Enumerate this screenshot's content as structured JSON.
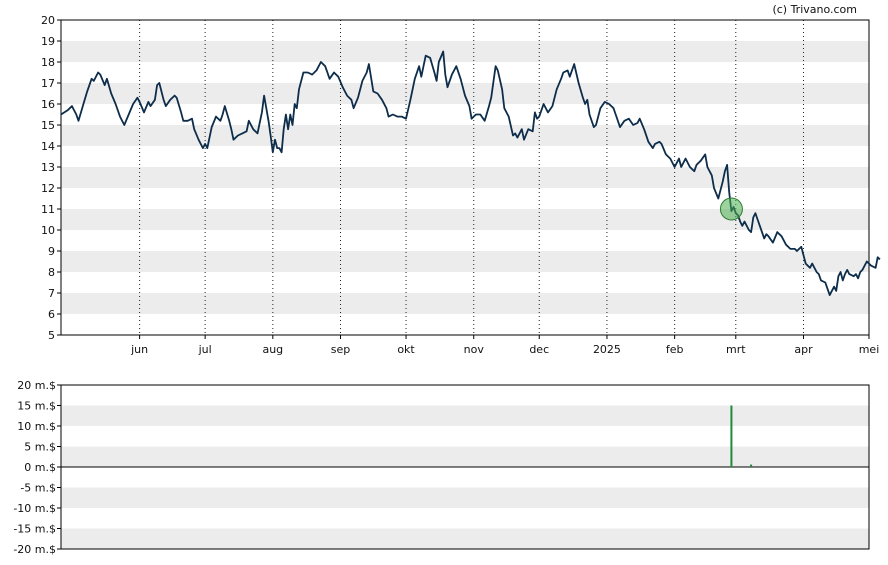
{
  "copyright": "(c) Trivano.com",
  "colors": {
    "band": "#ececec",
    "price_line": "#0d2d4a",
    "marker_fill": "#4caf50",
    "marker_stroke": "#2e7d32",
    "volume_bar": "#1f8a3a",
    "axis": "#000000"
  },
  "chart_data": [
    {
      "type": "line",
      "panel": "price",
      "ylim": [
        5,
        20
      ],
      "yticks": [
        "5",
        "6",
        "7",
        "8",
        "9",
        "10",
        "11",
        "12",
        "13",
        "14",
        "15",
        "16",
        "17",
        "18",
        "19",
        "20"
      ],
      "x_tick_labels": [
        {
          "label": "jun",
          "day": 25
        },
        {
          "label": "jul",
          "day": 55
        },
        {
          "label": "aug",
          "day": 86
        },
        {
          "label": "sep",
          "day": 117
        },
        {
          "label": "okt",
          "day": 147
        },
        {
          "label": "nov",
          "day": 178
        },
        {
          "label": "dec",
          "day": 208
        },
        {
          "label": "2025",
          "day": 239
        },
        {
          "label": "feb",
          "day": 270
        },
        {
          "label": "mrt",
          "day": 298
        },
        {
          "label": "apr",
          "day": 329
        },
        {
          "label": "mei",
          "day": 359
        }
      ],
      "x_day_range": [
        -11,
        359
      ],
      "series": [
        {
          "points": [
            [
              -11,
              15.5
            ],
            [
              -8,
              15.7
            ],
            [
              -6,
              15.9
            ],
            [
              -4,
              15.5
            ],
            [
              -3,
              15.2
            ],
            [
              -1,
              15.9
            ],
            [
              1,
              16.6
            ],
            [
              3,
              17.2
            ],
            [
              4,
              17.1
            ],
            [
              6,
              17.5
            ],
            [
              7,
              17.4
            ],
            [
              9,
              16.9
            ],
            [
              10,
              17.2
            ],
            [
              12,
              16.5
            ],
            [
              14,
              16.0
            ],
            [
              16,
              15.4
            ],
            [
              18,
              15.0
            ],
            [
              20,
              15.5
            ],
            [
              22,
              16.0
            ],
            [
              24,
              16.3
            ],
            [
              25,
              16.1
            ],
            [
              27,
              15.6
            ],
            [
              29,
              16.1
            ],
            [
              30,
              15.9
            ],
            [
              32,
              16.2
            ],
            [
              33,
              16.9
            ],
            [
              34,
              17.0
            ],
            [
              36,
              16.2
            ],
            [
              37,
              15.9
            ],
            [
              39,
              16.2
            ],
            [
              41,
              16.4
            ],
            [
              42,
              16.3
            ],
            [
              44,
              15.6
            ],
            [
              45,
              15.2
            ],
            [
              47,
              15.2
            ],
            [
              49,
              15.3
            ],
            [
              50,
              14.8
            ],
            [
              52,
              14.3
            ],
            [
              54,
              13.9
            ],
            [
              55,
              14.1
            ],
            [
              56,
              13.9
            ],
            [
              58,
              14.9
            ],
            [
              60,
              15.4
            ],
            [
              62,
              15.2
            ],
            [
              63,
              15.5
            ],
            [
              64,
              15.9
            ],
            [
              66,
              15.2
            ],
            [
              67,
              14.8
            ],
            [
              68,
              14.3
            ],
            [
              70,
              14.5
            ],
            [
              72,
              14.6
            ],
            [
              74,
              14.7
            ],
            [
              75,
              15.2
            ],
            [
              77,
              14.8
            ],
            [
              79,
              14.6
            ],
            [
              81,
              15.6
            ],
            [
              82,
              16.4
            ],
            [
              84,
              15.2
            ],
            [
              85,
              14.5
            ],
            [
              86,
              13.7
            ],
            [
              87,
              14.3
            ],
            [
              88,
              13.9
            ],
            [
              89,
              13.9
            ],
            [
              90,
              13.7
            ],
            [
              91,
              14.8
            ],
            [
              92,
              15.5
            ],
            [
              93,
              14.8
            ],
            [
              94,
              15.5
            ],
            [
              95,
              15.0
            ],
            [
              96,
              16.0
            ],
            [
              97,
              15.8
            ],
            [
              98,
              16.7
            ],
            [
              100,
              17.5
            ],
            [
              102,
              17.5
            ],
            [
              104,
              17.4
            ],
            [
              106,
              17.6
            ],
            [
              108,
              18.0
            ],
            [
              110,
              17.8
            ],
            [
              112,
              17.2
            ],
            [
              114,
              17.5
            ],
            [
              116,
              17.3
            ],
            [
              118,
              16.8
            ],
            [
              120,
              16.4
            ],
            [
              122,
              16.2
            ],
            [
              123,
              15.8
            ],
            [
              125,
              16.3
            ],
            [
              127,
              17.1
            ],
            [
              129,
              17.5
            ],
            [
              130,
              17.9
            ],
            [
              132,
              16.6
            ],
            [
              134,
              16.5
            ],
            [
              136,
              16.2
            ],
            [
              138,
              15.8
            ],
            [
              139,
              15.4
            ],
            [
              141,
              15.5
            ],
            [
              143,
              15.4
            ],
            [
              145,
              15.4
            ],
            [
              147,
              15.3
            ],
            [
              149,
              16.2
            ],
            [
              151,
              17.2
            ],
            [
              153,
              17.8
            ],
            [
              154,
              17.3
            ],
            [
              156,
              18.3
            ],
            [
              158,
              18.2
            ],
            [
              160,
              17.5
            ],
            [
              161,
              17.1
            ],
            [
              162,
              18.0
            ],
            [
              164,
              18.5
            ],
            [
              165,
              17.4
            ],
            [
              166,
              16.8
            ],
            [
              168,
              17.4
            ],
            [
              170,
              17.8
            ],
            [
              172,
              17.2
            ],
            [
              174,
              16.4
            ],
            [
              176,
              15.9
            ],
            [
              177,
              15.3
            ],
            [
              179,
              15.5
            ],
            [
              181,
              15.5
            ],
            [
              183,
              15.2
            ],
            [
              185,
              15.9
            ],
            [
              186,
              16.3
            ],
            [
              188,
              17.8
            ],
            [
              189,
              17.6
            ],
            [
              191,
              16.7
            ],
            [
              192,
              15.8
            ],
            [
              194,
              15.4
            ],
            [
              196,
              14.5
            ],
            [
              197,
              14.6
            ],
            [
              198,
              14.4
            ],
            [
              200,
              14.8
            ],
            [
              201,
              14.3
            ],
            [
              203,
              14.8
            ],
            [
              205,
              14.7
            ],
            [
              206,
              15.6
            ],
            [
              207,
              15.3
            ],
            [
              208,
              15.4
            ],
            [
              209,
              15.7
            ],
            [
              210,
              16.0
            ],
            [
              212,
              15.6
            ],
            [
              214,
              15.9
            ],
            [
              216,
              16.7
            ],
            [
              218,
              17.2
            ],
            [
              219,
              17.5
            ],
            [
              221,
              17.6
            ],
            [
              222,
              17.3
            ],
            [
              224,
              17.9
            ],
            [
              226,
              17.0
            ],
            [
              228,
              16.3
            ],
            [
              229,
              16.0
            ],
            [
              230,
              16.2
            ],
            [
              231,
              15.5
            ],
            [
              233,
              14.9
            ],
            [
              234,
              15.0
            ],
            [
              236,
              15.8
            ],
            [
              238,
              16.1
            ],
            [
              240,
              16.0
            ],
            [
              242,
              15.8
            ],
            [
              243,
              15.5
            ],
            [
              245,
              14.9
            ],
            [
              247,
              15.2
            ],
            [
              249,
              15.3
            ],
            [
              251,
              15.0
            ],
            [
              253,
              15.1
            ],
            [
              254,
              15.3
            ],
            [
              256,
              14.8
            ],
            [
              258,
              14.2
            ],
            [
              260,
              13.9
            ],
            [
              261,
              14.1
            ],
            [
              263,
              14.2
            ],
            [
              264,
              14.1
            ],
            [
              266,
              13.6
            ],
            [
              268,
              13.4
            ],
            [
              270,
              13.0
            ],
            [
              272,
              13.4
            ],
            [
              273,
              13.0
            ],
            [
              275,
              13.4
            ],
            [
              277,
              13.0
            ],
            [
              279,
              12.8
            ],
            [
              280,
              13.1
            ],
            [
              282,
              13.3
            ],
            [
              284,
              13.6
            ],
            [
              285,
              13.0
            ],
            [
              287,
              12.6
            ],
            [
              288,
              12.0
            ],
            [
              290,
              11.5
            ],
            [
              292,
              12.3
            ],
            [
              293,
              12.8
            ],
            [
              294,
              13.1
            ],
            [
              295,
              11.8
            ],
            [
              296,
              10.9
            ],
            [
              297,
              11.1
            ],
            [
              298,
              10.8
            ],
            [
              299,
              10.7
            ],
            [
              300,
              10.4
            ],
            [
              301,
              10.2
            ],
            [
              302,
              10.4
            ],
            [
              304,
              10.0
            ],
            [
              305,
              9.9
            ],
            [
              306,
              10.6
            ],
            [
              307,
              10.8
            ],
            [
              308,
              10.5
            ],
            [
              309,
              10.2
            ],
            [
              311,
              9.6
            ],
            [
              312,
              9.8
            ],
            [
              313,
              9.7
            ],
            [
              315,
              9.4
            ],
            [
              317,
              9.9
            ],
            [
              319,
              9.7
            ],
            [
              321,
              9.3
            ],
            [
              323,
              9.1
            ],
            [
              325,
              9.1
            ],
            [
              326,
              9.0
            ],
            [
              328,
              9.2
            ],
            [
              329,
              8.8
            ],
            [
              330,
              8.4
            ],
            [
              332,
              8.2
            ],
            [
              333,
              8.4
            ],
            [
              335,
              8.0
            ],
            [
              336,
              7.9
            ],
            [
              337,
              7.6
            ],
            [
              339,
              7.5
            ],
            [
              340,
              7.2
            ],
            [
              341,
              6.9
            ],
            [
              343,
              7.3
            ],
            [
              344,
              7.1
            ],
            [
              345,
              7.8
            ],
            [
              346,
              8.0
            ],
            [
              347,
              7.6
            ],
            [
              348,
              7.9
            ],
            [
              349,
              8.1
            ],
            [
              350,
              7.9
            ],
            [
              352,
              7.8
            ],
            [
              353,
              7.9
            ],
            [
              354,
              7.7
            ],
            [
              355,
              8.0
            ],
            [
              356,
              8.1
            ],
            [
              357,
              8.3
            ],
            [
              358,
              8.5
            ],
            [
              359,
              8.4
            ],
            [
              360,
              8.3
            ],
            [
              362,
              8.2
            ],
            [
              363,
              8.7
            ],
            [
              364,
              8.6
            ]
          ]
        }
      ],
      "marker": {
        "day": 296,
        "value": 11.0
      }
    },
    {
      "type": "bar",
      "panel": "volume",
      "ylim": [
        -20,
        20
      ],
      "yticks": [
        "-20 m.$",
        "-15 m.$",
        "-10 m.$",
        "-5 m.$",
        "0 m.$",
        "5 m.$",
        "10 m.$",
        "15 m.$",
        "20 m.$"
      ],
      "yvalues": [
        -20,
        -15,
        -10,
        -5,
        0,
        5,
        10,
        15,
        20
      ],
      "bars": [
        {
          "day": 296,
          "value": 15.0
        },
        {
          "day": 305,
          "value": 0.6
        }
      ]
    }
  ]
}
